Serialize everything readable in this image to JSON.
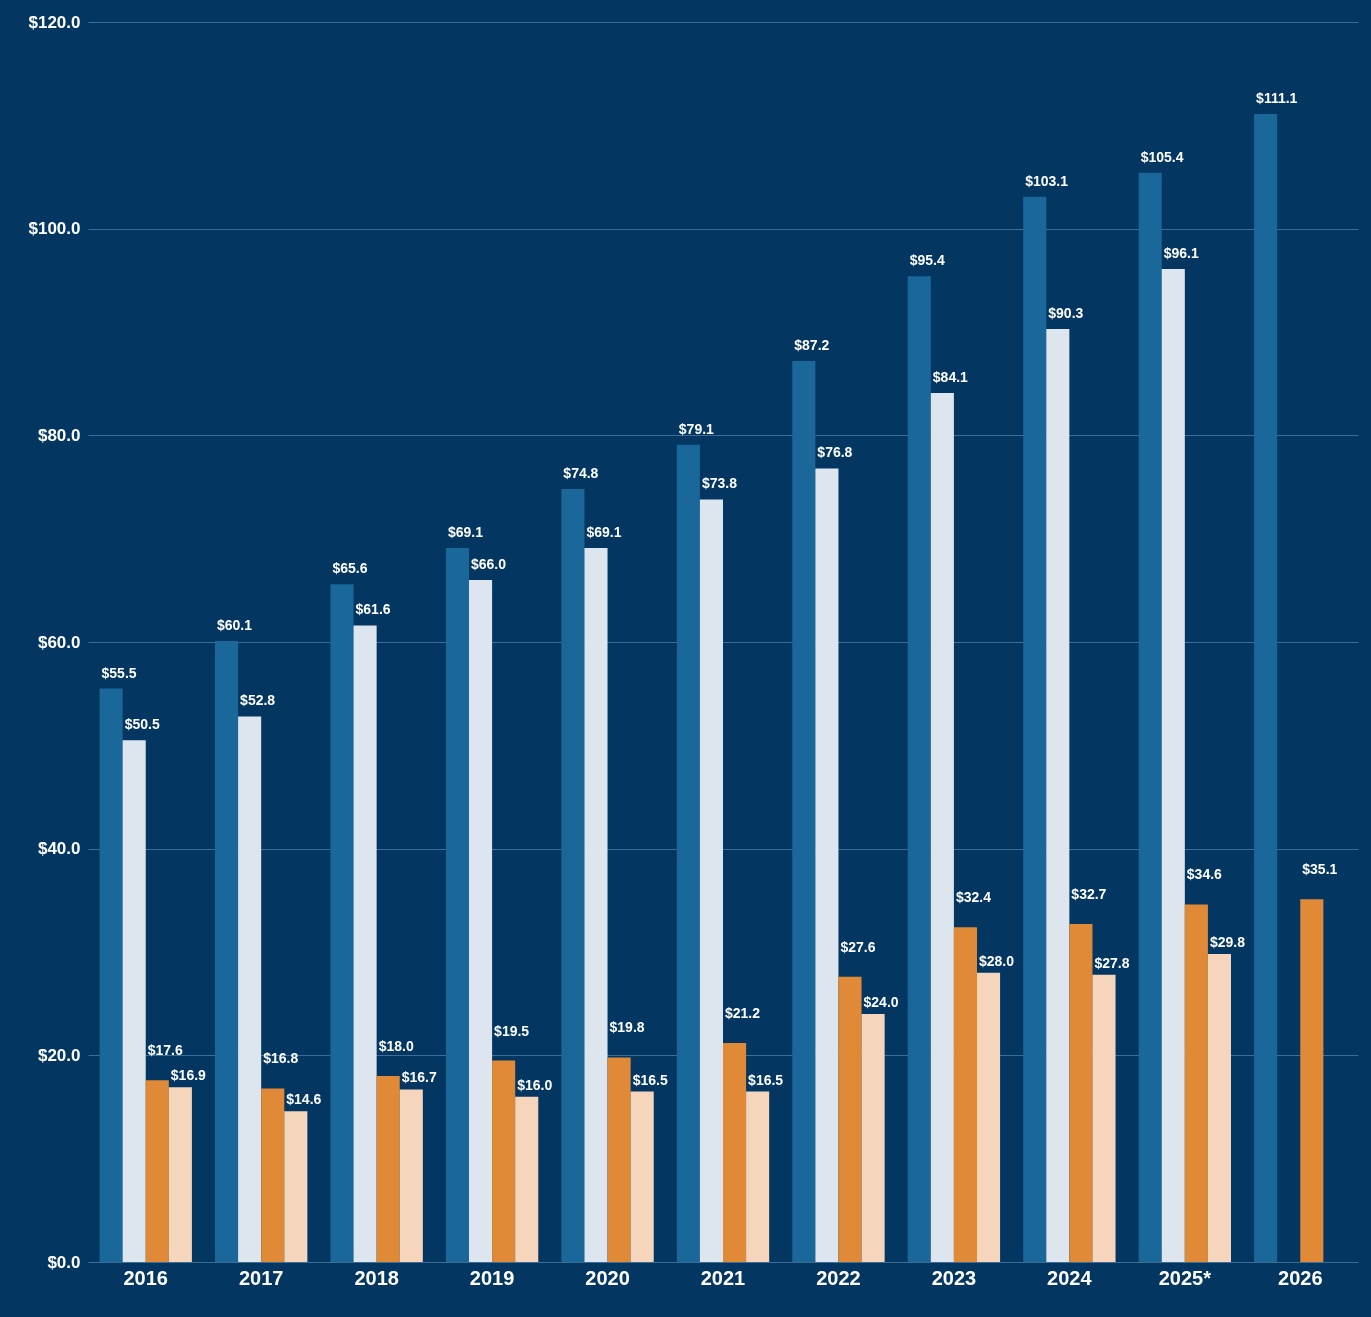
{
  "chart_data": {
    "type": "bar",
    "categories": [
      "2016",
      "2017",
      "2018",
      "2019",
      "2020",
      "2021",
      "2022",
      "2023",
      "2024",
      "2025*",
      "2026"
    ],
    "series": [
      {
        "color": "#1a6799",
        "values": [
          55.5,
          60.1,
          65.6,
          69.1,
          74.8,
          79.1,
          87.2,
          95.4,
          103.1,
          105.4,
          111.1
        ],
        "value_labels": [
          "$55.5",
          "$60.1",
          "$65.6",
          "$69.1",
          "$74.8",
          "$79.1",
          "$87.2",
          "$95.4",
          "$103.1",
          "$105.4",
          "$111.1"
        ]
      },
      {
        "color": "#dde6ef",
        "values": [
          50.5,
          52.8,
          61.6,
          66.0,
          69.1,
          73.8,
          76.8,
          84.1,
          90.3,
          96.1,
          null
        ],
        "value_labels": [
          "$50.5",
          "$52.8",
          "$61.6",
          "$66.0",
          "$69.1",
          "$73.8",
          "$76.8",
          "$84.1",
          "$90.3",
          "$96.1",
          null
        ]
      },
      {
        "color": "#e08a38",
        "values": [
          17.6,
          16.8,
          18.0,
          19.5,
          19.8,
          21.2,
          27.6,
          32.4,
          32.7,
          34.6,
          35.1
        ],
        "value_labels": [
          "$17.6",
          "$16.8",
          "$18.0",
          "$19.5",
          "$19.8",
          "$21.2",
          "$27.6",
          "$32.4",
          "$32.7",
          "$34.6",
          "$35.1"
        ]
      },
      {
        "color": "#f5d6bc",
        "values": [
          16.9,
          14.6,
          16.7,
          16.0,
          16.5,
          16.5,
          24.0,
          28.0,
          27.8,
          29.8,
          null
        ],
        "value_labels": [
          "$16.9",
          "$14.6",
          "$16.7",
          "$16.0",
          "$16.5",
          "$16.5",
          "$24.0",
          "$28.0",
          "$27.8",
          "$29.8",
          null
        ]
      }
    ],
    "ylim": [
      0,
      120
    ],
    "yticks": [
      {
        "value": 0,
        "label": "$0.0"
      },
      {
        "value": 20,
        "label": "$20.0"
      },
      {
        "value": 40,
        "label": "$40.0"
      },
      {
        "value": 60,
        "label": "$60.0"
      },
      {
        "value": 80,
        "label": "$80.0"
      },
      {
        "value": 100,
        "label": "$100.0"
      },
      {
        "value": 120,
        "label": "$120.0"
      }
    ],
    "grid": "y",
    "legend": false
  }
}
